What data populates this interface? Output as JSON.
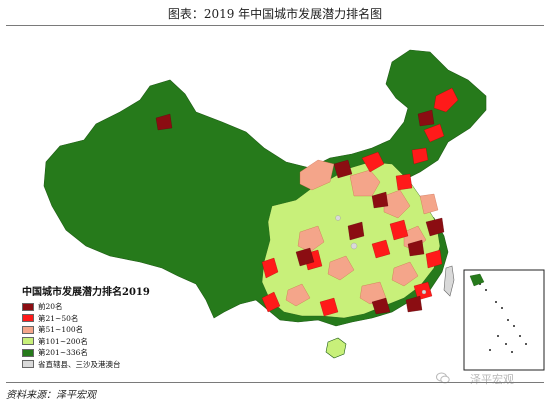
{
  "header": {
    "title": "图表：2019 年中国城市发展潜力排名图"
  },
  "legend": {
    "title": "中国城市发展潜力排名2019",
    "items": [
      {
        "label": "前20名",
        "color": "#8b0d12"
      },
      {
        "label": "第21~50名",
        "color": "#ff1a1a"
      },
      {
        "label": "第51~100名",
        "color": "#f4a58a"
      },
      {
        "label": "第101~200名",
        "color": "#c8f07a"
      },
      {
        "label": "第201~336名",
        "color": "#267a1b"
      },
      {
        "label": "省直辖县、三沙及港澳台",
        "color": "#d9d9d9"
      }
    ]
  },
  "footer": {
    "source": "资料来源：泽平宏观",
    "brand": "泽平宏观",
    "brand_icon": "wechat-icon"
  },
  "colors": {
    "top20": "#8b0d12",
    "rank21_50": "#ff1a1a",
    "rank51_100": "#f4a58a",
    "rank101_200": "#c8f07a",
    "rank201_336": "#267a1b",
    "other": "#d9d9d9"
  }
}
